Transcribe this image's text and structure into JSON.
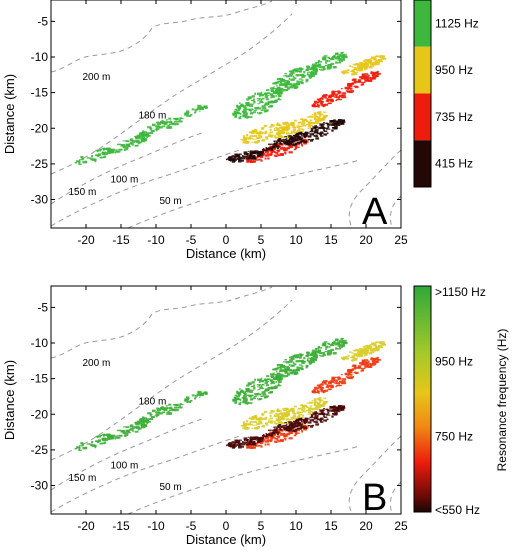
{
  "chart_data": [
    {
      "type": "scatter",
      "panel_label": "A",
      "xlabel": "Distance (km)",
      "ylabel": "Distance (km)",
      "xlim": [
        -25,
        25
      ],
      "ylim": [
        -34,
        -2
      ],
      "xticks": [
        -20,
        -15,
        -10,
        -5,
        0,
        5,
        10,
        15,
        20,
        25
      ],
      "yticks": [
        -5,
        -10,
        -15,
        -20,
        -25,
        -30
      ],
      "grid": false,
      "colorbar": {
        "position": "right",
        "discrete": true,
        "labels": [
          "1125 Hz",
          "950 Hz",
          "735 Hz",
          "415 Hz"
        ],
        "colors": [
          "#3db83d",
          "#e6c619",
          "#ee1c0c",
          "#240806"
        ]
      },
      "contour_labels": [
        {
          "text": "200 m",
          "x": -20.5,
          "y": -13.2
        },
        {
          "text": "180 m",
          "x": -12.5,
          "y": -18.6
        },
        {
          "text": "100 m",
          "x": -16.5,
          "y": -27.6
        },
        {
          "text": "150 m",
          "x": -22.5,
          "y": -29.4
        },
        {
          "text": "50 m",
          "x": -9.5,
          "y": -30.6
        }
      ]
    },
    {
      "type": "scatter",
      "panel_label": "B",
      "xlabel": "Distance (km)",
      "ylabel": "Distance (km)",
      "xlim": [
        -25,
        25
      ],
      "ylim": [
        -34,
        -2
      ],
      "xticks": [
        -20,
        -15,
        -10,
        -5,
        0,
        5,
        10,
        15,
        20,
        25
      ],
      "yticks": [
        -5,
        -10,
        -15,
        -20,
        -25,
        -30
      ],
      "grid": false,
      "colorbar": {
        "position": "right",
        "discrete": false,
        "title": "Resonance frequency (Hz)",
        "labels": [
          ">1150 Hz",
          "950 Hz",
          "750 Hz",
          "<550 Hz"
        ],
        "values": [
          1150,
          950,
          750,
          550
        ],
        "colors": [
          "#2fa83a",
          "#e6c619",
          "#ee1c0c",
          "#1a0604"
        ]
      },
      "contour_labels": [
        {
          "text": "200 m",
          "x": -20.5,
          "y": -13.2
        },
        {
          "text": "180 m",
          "x": -12.5,
          "y": -18.6
        },
        {
          "text": "100 m",
          "x": -16.5,
          "y": -27.6
        },
        {
          "text": "150 m",
          "x": -22.5,
          "y": -29.4
        },
        {
          "text": "50 m",
          "x": -9.5,
          "y": -30.6
        }
      ]
    }
  ]
}
